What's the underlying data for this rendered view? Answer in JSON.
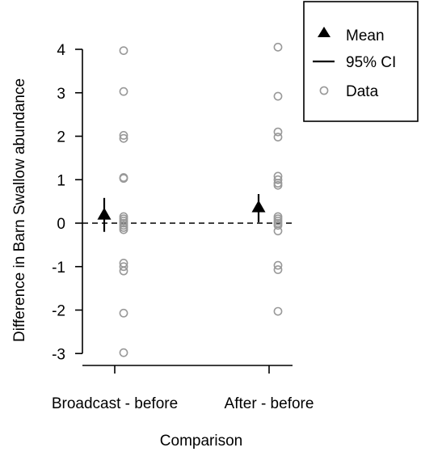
{
  "chart_data": {
    "type": "scatter",
    "title": "",
    "xlabel": "Comparison",
    "ylabel": "Difference in Barn Swallow abundance",
    "categories": [
      "Broadcast - before",
      "After - before"
    ],
    "ylim": [
      -3.2,
      4.3
    ],
    "yticks": [
      -3,
      -2,
      -1,
      0,
      1,
      2,
      3,
      4
    ],
    "reference_line": {
      "y": 0,
      "style": "dashed"
    },
    "grid": false,
    "legend": {
      "position": "top-right",
      "entries": [
        {
          "label": "Mean",
          "marker": "filled-triangle",
          "color": "#000000"
        },
        {
          "label": "95% CI",
          "marker": "line",
          "color": "#000000"
        },
        {
          "label": "Data",
          "marker": "open-circle",
          "color": "#999999"
        }
      ]
    },
    "series": [
      {
        "name": "Mean",
        "marker": "filled-triangle",
        "values": [
          0.2,
          0.37
        ]
      },
      {
        "name": "95% CI",
        "marker": "line",
        "intervals": [
          [
            -0.2,
            0.58
          ],
          [
            0.02,
            0.67
          ]
        ]
      },
      {
        "name": "Data",
        "marker": "open-circle",
        "points": [
          [
            3.97,
            3.03,
            2.02,
            1.95,
            1.05,
            1.03,
            0.15,
            0.1,
            0.05,
            0.0,
            -0.05,
            -0.1,
            -0.15,
            -0.92,
            -1.0,
            -1.1,
            -2.07,
            -2.98
          ],
          [
            4.05,
            2.92,
            2.1,
            1.98,
            1.08,
            1.0,
            0.92,
            0.87,
            0.15,
            0.1,
            0.05,
            0.0,
            -0.05,
            -0.18,
            -0.97,
            -1.07,
            -2.03
          ]
        ]
      }
    ]
  },
  "colors": {
    "axis": "#000000",
    "mean": "#000000",
    "ci": "#000000",
    "data": "#999999"
  }
}
